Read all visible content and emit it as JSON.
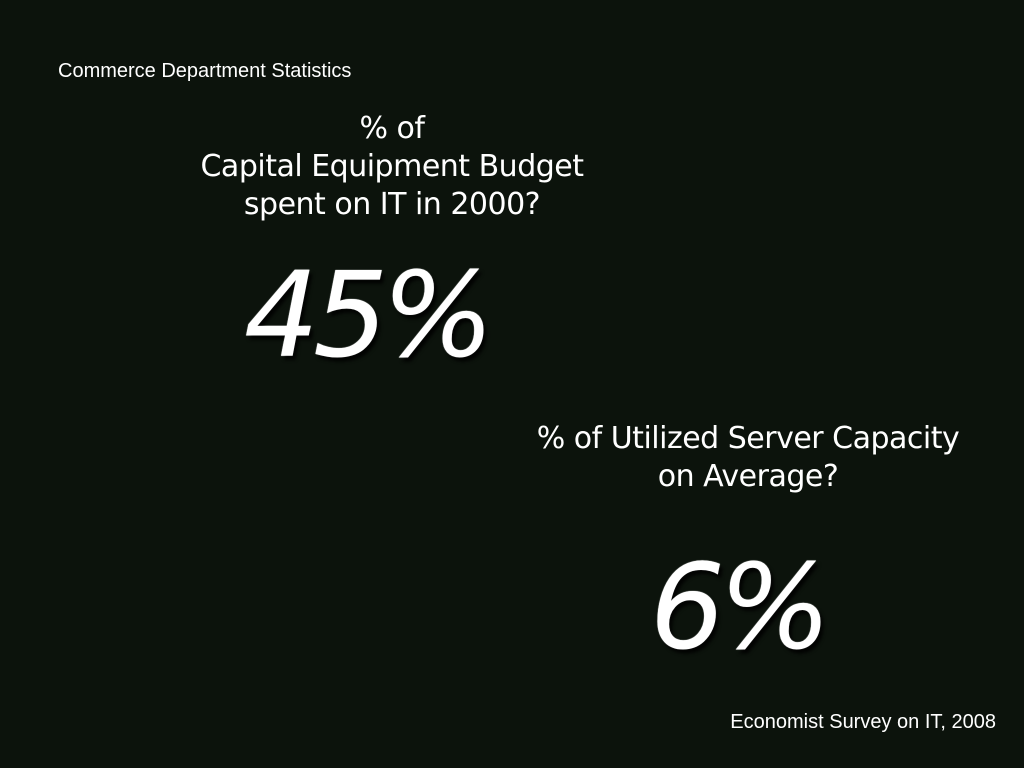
{
  "slide": {
    "top_source": "Commerce Department Statistics",
    "question_1": "% of\nCapital Equipment Budget\nspent on IT in 2000?",
    "answer_1": "45%",
    "question_2": "% of Utilized Server Capacity\non Average?",
    "answer_2": "6%",
    "bottom_source": "Economist Survey on IT, 2008"
  },
  "colors": {
    "background": "#0c130c",
    "text": "#ffffff"
  }
}
